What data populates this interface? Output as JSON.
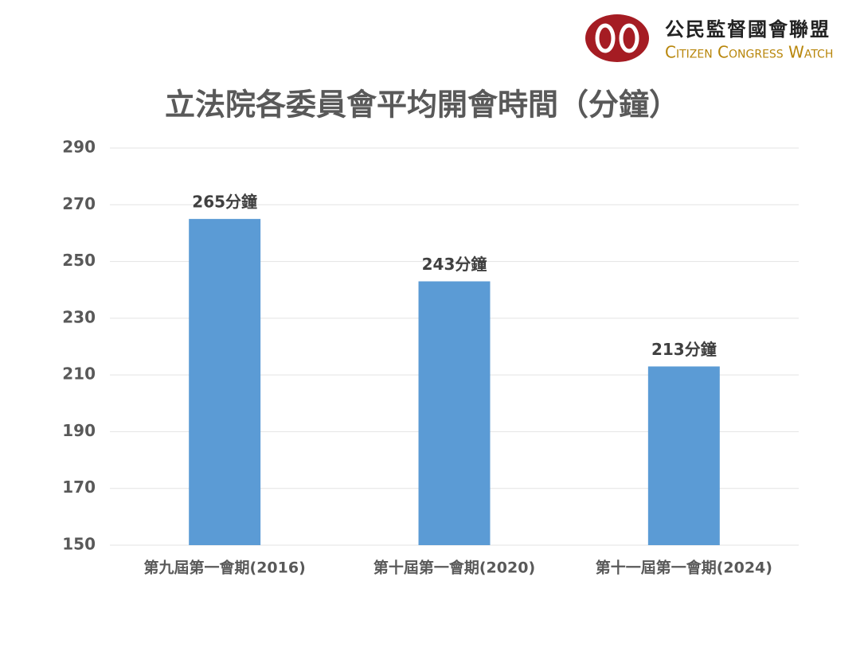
{
  "logo": {
    "name_zh": "公民監督國會聯盟",
    "name_en": "Citizen Congress Watch"
  },
  "chart_data": {
    "type": "bar",
    "title": "立法院各委員會平均開會時間（分鐘）",
    "categories": [
      "第九屆第一會期(2016)",
      "第十屆第一會期(2020)",
      "第十一屆第一會期(2024)"
    ],
    "values": [
      265,
      243,
      213
    ],
    "value_labels": [
      "265分鐘",
      "243分鐘",
      "213分鐘"
    ],
    "color": "#5b9bd5",
    "ylim": [
      150,
      290
    ],
    "yticks": [
      150,
      170,
      190,
      210,
      230,
      250,
      270,
      290
    ],
    "grid": true
  }
}
